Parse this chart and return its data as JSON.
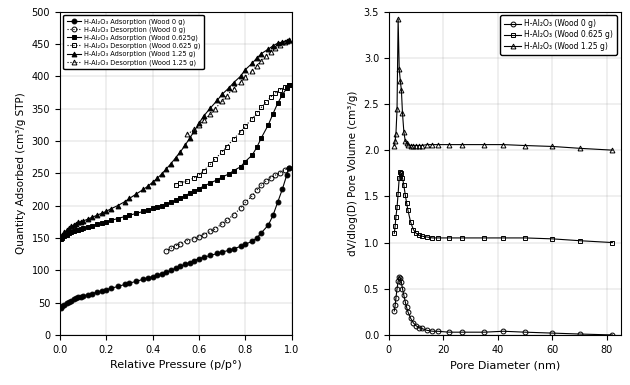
{
  "left": {
    "xlabel": "Relative Pressure (p/p°)",
    "ylabel": "Quantity Adsorbed (cm³/g STP)",
    "xlim": [
      0.0,
      1.0
    ],
    "ylim": [
      0,
      500
    ],
    "yticks": [
      0,
      50,
      100,
      150,
      200,
      250,
      300,
      350,
      400,
      450,
      500
    ],
    "xticks": [
      0.0,
      0.2,
      0.4,
      0.6,
      0.8,
      1.0
    ],
    "series": [
      {
        "label": "H-Al₂O₃ Adsorption (Wood 0 g)",
        "x": [
          0.005,
          0.01,
          0.02,
          0.03,
          0.04,
          0.05,
          0.06,
          0.07,
          0.08,
          0.09,
          0.1,
          0.12,
          0.14,
          0.16,
          0.18,
          0.2,
          0.22,
          0.25,
          0.28,
          0.3,
          0.33,
          0.36,
          0.38,
          0.4,
          0.42,
          0.44,
          0.46,
          0.48,
          0.5,
          0.52,
          0.54,
          0.56,
          0.58,
          0.6,
          0.62,
          0.65,
          0.68,
          0.7,
          0.73,
          0.75,
          0.78,
          0.8,
          0.83,
          0.85,
          0.87,
          0.9,
          0.92,
          0.94,
          0.96,
          0.98,
          0.99
        ],
        "y": [
          42,
          44,
          47,
          49,
          51,
          53,
          55,
          57,
          58,
          59,
          60,
          62,
          64,
          66,
          68,
          70,
          72,
          75,
          78,
          80,
          83,
          86,
          88,
          90,
          92,
          94,
          97,
          100,
          103,
          106,
          109,
          112,
          115,
          118,
          120,
          123,
          126,
          128,
          131,
          133,
          137,
          140,
          145,
          150,
          158,
          170,
          185,
          205,
          225,
          248,
          258
        ],
        "marker": "o",
        "mfc": "black",
        "linestyle": "-",
        "linewidth": 0.8
      },
      {
        "label": "H-Al₂O₃ Desorption (Wood 0 g)",
        "x": [
          0.99,
          0.97,
          0.95,
          0.93,
          0.91,
          0.89,
          0.87,
          0.85,
          0.83,
          0.8,
          0.78,
          0.75,
          0.72,
          0.7,
          0.67,
          0.65,
          0.62,
          0.6,
          0.58,
          0.55,
          0.52,
          0.5,
          0.48,
          0.46
        ],
        "y": [
          258,
          255,
          251,
          247,
          243,
          238,
          232,
          224,
          215,
          205,
          196,
          186,
          177,
          172,
          164,
          160,
          155,
          152,
          149,
          146,
          141,
          138,
          134,
          130
        ],
        "marker": "o",
        "mfc": "none",
        "linestyle": ":",
        "linewidth": 0.8
      },
      {
        "label": "H-Al₂O₃ Adsorption (Wood 0.625g)",
        "x": [
          0.005,
          0.01,
          0.02,
          0.03,
          0.04,
          0.05,
          0.06,
          0.07,
          0.08,
          0.09,
          0.1,
          0.12,
          0.14,
          0.16,
          0.18,
          0.2,
          0.22,
          0.25,
          0.28,
          0.3,
          0.33,
          0.36,
          0.38,
          0.4,
          0.42,
          0.44,
          0.46,
          0.48,
          0.5,
          0.52,
          0.54,
          0.56,
          0.58,
          0.6,
          0.62,
          0.65,
          0.68,
          0.7,
          0.73,
          0.75,
          0.78,
          0.8,
          0.83,
          0.85,
          0.87,
          0.9,
          0.92,
          0.94,
          0.96,
          0.98,
          0.99
        ],
        "y": [
          148,
          150,
          153,
          155,
          157,
          159,
          161,
          162,
          163,
          164,
          165,
          167,
          169,
          171,
          173,
          175,
          177,
          180,
          183,
          185,
          188,
          191,
          193,
          196,
          198,
          200,
          202,
          205,
          208,
          212,
          215,
          219,
          222,
          226,
          230,
          235,
          240,
          244,
          249,
          254,
          260,
          268,
          278,
          290,
          305,
          325,
          342,
          358,
          371,
          382,
          386
        ],
        "marker": "s",
        "mfc": "black",
        "linestyle": "-",
        "linewidth": 0.8
      },
      {
        "label": "H-Al₂O₃ Desorption (Wood 0.625 g)",
        "x": [
          0.99,
          0.97,
          0.95,
          0.93,
          0.91,
          0.89,
          0.87,
          0.85,
          0.83,
          0.8,
          0.78,
          0.75,
          0.72,
          0.7,
          0.67,
          0.65,
          0.62,
          0.6,
          0.58,
          0.55,
          0.52,
          0.5
        ],
        "y": [
          386,
          383,
          379,
          374,
          368,
          360,
          352,
          343,
          334,
          323,
          314,
          303,
          291,
          283,
          272,
          264,
          254,
          247,
          243,
          238,
          235,
          232
        ],
        "marker": "s",
        "mfc": "none",
        "linestyle": ":",
        "linewidth": 0.8
      },
      {
        "label": "H-Al₂O₃ Adsorption (Wood 1.25 g)",
        "x": [
          0.005,
          0.01,
          0.02,
          0.03,
          0.04,
          0.05,
          0.06,
          0.07,
          0.08,
          0.09,
          0.1,
          0.12,
          0.14,
          0.16,
          0.18,
          0.2,
          0.22,
          0.25,
          0.28,
          0.3,
          0.33,
          0.36,
          0.38,
          0.4,
          0.42,
          0.44,
          0.46,
          0.48,
          0.5,
          0.52,
          0.54,
          0.56,
          0.58,
          0.6,
          0.62,
          0.65,
          0.68,
          0.7,
          0.73,
          0.75,
          0.78,
          0.8,
          0.83,
          0.85,
          0.87,
          0.9,
          0.92,
          0.94,
          0.96,
          0.98,
          0.99
        ],
        "y": [
          152,
          155,
          159,
          162,
          165,
          168,
          170,
          172,
          174,
          175,
          176,
          179,
          182,
          185,
          188,
          191,
          195,
          200,
          206,
          211,
          218,
          225,
          230,
          236,
          242,
          249,
          257,
          265,
          274,
          283,
          293,
          304,
          315,
          327,
          338,
          351,
          363,
          372,
          382,
          390,
          400,
          410,
          420,
          428,
          435,
          442,
          447,
          451,
          453,
          455,
          456
        ],
        "marker": "^",
        "mfc": "black",
        "linestyle": "-",
        "linewidth": 0.8
      },
      {
        "label": "H-Al₂O₃ Desorption (Wood 1.25 g)",
        "x": [
          0.99,
          0.97,
          0.95,
          0.93,
          0.91,
          0.89,
          0.87,
          0.85,
          0.83,
          0.8,
          0.78,
          0.75,
          0.72,
          0.7,
          0.67,
          0.65,
          0.62,
          0.6,
          0.58,
          0.55
        ],
        "y": [
          456,
          453,
          449,
          444,
          438,
          431,
          424,
          416,
          408,
          399,
          391,
          381,
          370,
          361,
          350,
          341,
          332,
          325,
          318,
          310
        ],
        "marker": "^",
        "mfc": "none",
        "linestyle": ":",
        "linewidth": 0.8
      }
    ],
    "legend_labels": [
      "H-Al₂O₃ Adsorption (Wood 0 g)",
      "H-Al₂O₃ Desorption (Wood 0 g)",
      "H-Al₂O₃ Adsorption (Wood 0.625g)",
      "H-Al₂O₃ Desorption (Wood 0.625 g)",
      "H-Al₂O₃ Adsorption (Wood 1.25 g)",
      "H-Al₂O₃ Desorption (Wood 1.25 g)"
    ]
  },
  "right": {
    "xlabel": "Pore Diameter (nm)",
    "ylabel": "dV/dlog(D) Pore Volume (cm³/g)",
    "xlim": [
      0,
      85
    ],
    "ylim": [
      0.0,
      3.5
    ],
    "yticks": [
      0.0,
      0.5,
      1.0,
      1.5,
      2.0,
      2.5,
      3.0,
      3.5
    ],
    "xticks": [
      0,
      20,
      40,
      60,
      80
    ],
    "series": [
      {
        "label": "H-Al₂O₃ (Wood 0 g)",
        "x": [
          2.0,
          2.3,
          2.6,
          3.0,
          3.4,
          3.8,
          4.2,
          4.6,
          5.0,
          5.5,
          6.0,
          6.5,
          7.0,
          8.0,
          9.0,
          10.0,
          11.0,
          12.0,
          14.0,
          16.0,
          18.0,
          22.0,
          27.0,
          35.0,
          42.0,
          50.0,
          60.0,
          70.0,
          82.0
        ],
        "y": [
          0.26,
          0.32,
          0.4,
          0.5,
          0.58,
          0.63,
          0.62,
          0.57,
          0.5,
          0.43,
          0.36,
          0.3,
          0.25,
          0.18,
          0.13,
          0.1,
          0.08,
          0.07,
          0.05,
          0.04,
          0.04,
          0.03,
          0.03,
          0.03,
          0.04,
          0.03,
          0.02,
          0.01,
          0.0
        ],
        "marker": "o",
        "linestyle": "-",
        "linewidth": 0.8
      },
      {
        "label": "H-Al₂O₃ (Wood 0.625 g)",
        "x": [
          2.0,
          2.3,
          2.6,
          3.0,
          3.4,
          3.8,
          4.2,
          4.6,
          5.0,
          5.5,
          6.0,
          6.5,
          7.0,
          8.0,
          9.0,
          10.0,
          11.0,
          12.0,
          14.0,
          16.0,
          18.0,
          22.0,
          27.0,
          35.0,
          42.0,
          50.0,
          60.0,
          70.0,
          82.0
        ],
        "y": [
          1.1,
          1.18,
          1.28,
          1.38,
          1.53,
          1.7,
          1.76,
          1.75,
          1.7,
          1.62,
          1.52,
          1.43,
          1.35,
          1.22,
          1.14,
          1.1,
          1.08,
          1.07,
          1.06,
          1.05,
          1.05,
          1.05,
          1.05,
          1.05,
          1.05,
          1.05,
          1.04,
          1.02,
          1.0
        ],
        "marker": "s",
        "linestyle": "-",
        "linewidth": 0.8
      },
      {
        "label": "H-Al₂O₃ (Wood 1.25 g)",
        "x": [
          2.0,
          2.3,
          2.6,
          3.0,
          3.4,
          3.8,
          4.2,
          4.6,
          5.0,
          5.5,
          6.0,
          6.5,
          7.0,
          8.0,
          9.0,
          10.0,
          11.0,
          12.0,
          14.0,
          16.0,
          18.0,
          22.0,
          27.0,
          35.0,
          42.0,
          50.0,
          60.0,
          70.0,
          82.0
        ],
        "y": [
          2.05,
          2.1,
          2.18,
          2.44,
          3.42,
          2.88,
          2.75,
          2.65,
          2.4,
          2.2,
          2.1,
          2.08,
          2.06,
          2.05,
          2.05,
          2.05,
          2.05,
          2.05,
          2.06,
          2.06,
          2.06,
          2.06,
          2.06,
          2.06,
          2.06,
          2.05,
          2.04,
          2.02,
          2.0
        ],
        "marker": "^",
        "linestyle": "-",
        "linewidth": 0.8
      }
    ]
  }
}
